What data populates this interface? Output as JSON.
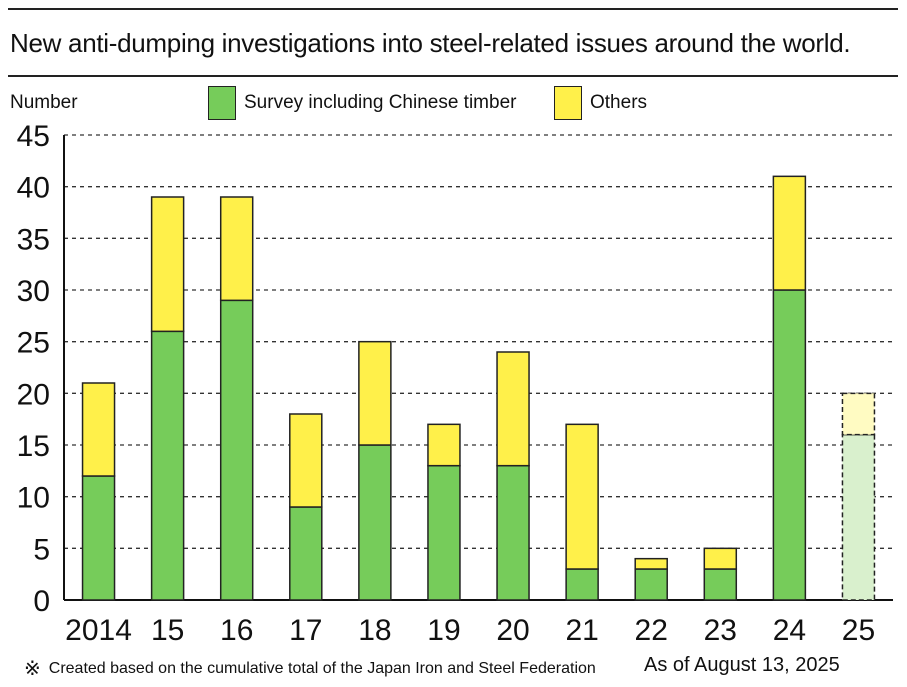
{
  "header": {
    "title": "New anti-dumping investigations into steel-related issues around the world."
  },
  "colors": {
    "green": "#76cc5a",
    "yellow": "#fff04a",
    "green_projected": "#d9f0cd",
    "yellow_projected": "#fffbc2",
    "grid": "#333333"
  },
  "legend": [
    {
      "label": "Survey including Chinese timber",
      "color": "#76cc5a"
    },
    {
      "label": "Others",
      "color": "#fff04a"
    }
  ],
  "footer": {
    "mark": "※",
    "note": "Created based on the cumulative total of the Japan Iron and Steel Federation",
    "as_of": "As of August 13, 2025"
  },
  "chart_data": {
    "type": "bar",
    "stacked": true,
    "title": "New anti-dumping investigations into steel-related issues around the world.",
    "ylabel": "Number",
    "xlabel": "",
    "ylim": [
      0,
      45
    ],
    "yticks": [
      0,
      5,
      10,
      15,
      20,
      25,
      30,
      35,
      40,
      45
    ],
    "grid": true,
    "legend_position": "top",
    "categories": [
      "2014",
      "15",
      "16",
      "17",
      "18",
      "19",
      "20",
      "21",
      "22",
      "23",
      "24",
      "25"
    ],
    "series": [
      {
        "name": "Survey including Chinese timber",
        "values": [
          12,
          26,
          29,
          9,
          15,
          13,
          13,
          3,
          3,
          3,
          30,
          16
        ]
      },
      {
        "name": "Others",
        "values": [
          9,
          13,
          10,
          9,
          10,
          4,
          11,
          14,
          1,
          2,
          11,
          4
        ]
      }
    ],
    "projected_categories": [
      "25"
    ]
  }
}
